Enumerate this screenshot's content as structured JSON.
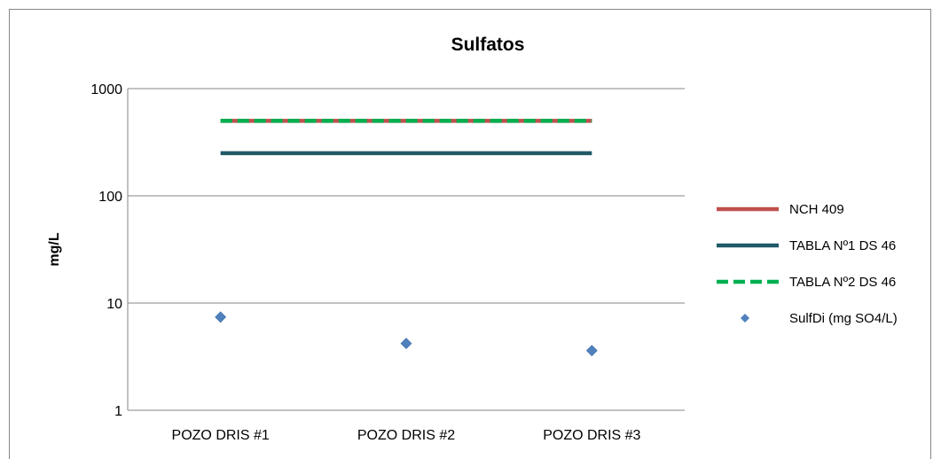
{
  "chart_data": {
    "type": "line",
    "title": "Sulfatos",
    "xlabel": "",
    "ylabel": "mg/L",
    "yscale": "log",
    "ylim": [
      1,
      1000
    ],
    "yticks": [
      "1",
      "10",
      "100",
      "1000"
    ],
    "grid": true,
    "legend_position": "right",
    "categories": [
      "POZO DRIS #1",
      "POZO DRIS #2",
      "POZO DRIS #3"
    ],
    "series": [
      {
        "name": "NCH 409",
        "style": "solid-line",
        "color": "#C0504D",
        "values": [
          500,
          500,
          500
        ]
      },
      {
        "name": "TABLA Nº1 DS 46",
        "style": "solid-line",
        "color": "#215968",
        "values": [
          250,
          250,
          250
        ]
      },
      {
        "name": "TABLA Nº2 DS 46",
        "style": "dashed-line",
        "color": "#00B050",
        "values": [
          500,
          500,
          500
        ]
      },
      {
        "name": "SulfDi (mg SO4/L)",
        "style": "diamond-marker",
        "color": "#4F81BD",
        "values": [
          7.4,
          4.2,
          3.6
        ]
      }
    ]
  }
}
